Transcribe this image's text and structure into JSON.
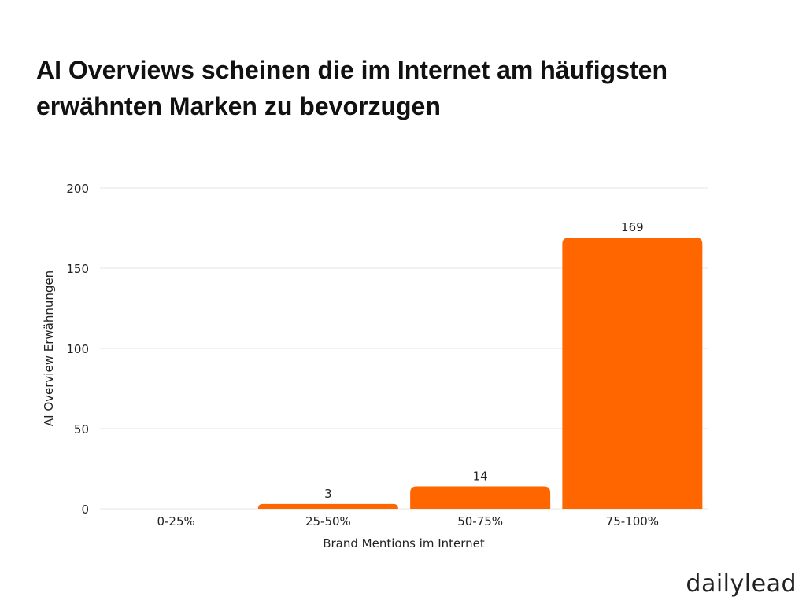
{
  "chart_data": {
    "type": "bar",
    "title": "AI Overviews scheinen die im Internet am häufigsten erwähnten Marken zu bevorzugen",
    "xlabel": "Brand Mentions im Internet",
    "ylabel": "AI Overview Erwähnungen",
    "categories": [
      "0-25%",
      "25-50%",
      "50-75%",
      "75-100%"
    ],
    "values": [
      0,
      3,
      14,
      169
    ],
    "data_labels": [
      "",
      "3",
      "14",
      "169"
    ],
    "ylim": [
      0,
      200
    ],
    "yticks": [
      0,
      50,
      100,
      150,
      200
    ],
    "grid": true,
    "bar_color": "#FF6600"
  },
  "logo": "dailylead"
}
